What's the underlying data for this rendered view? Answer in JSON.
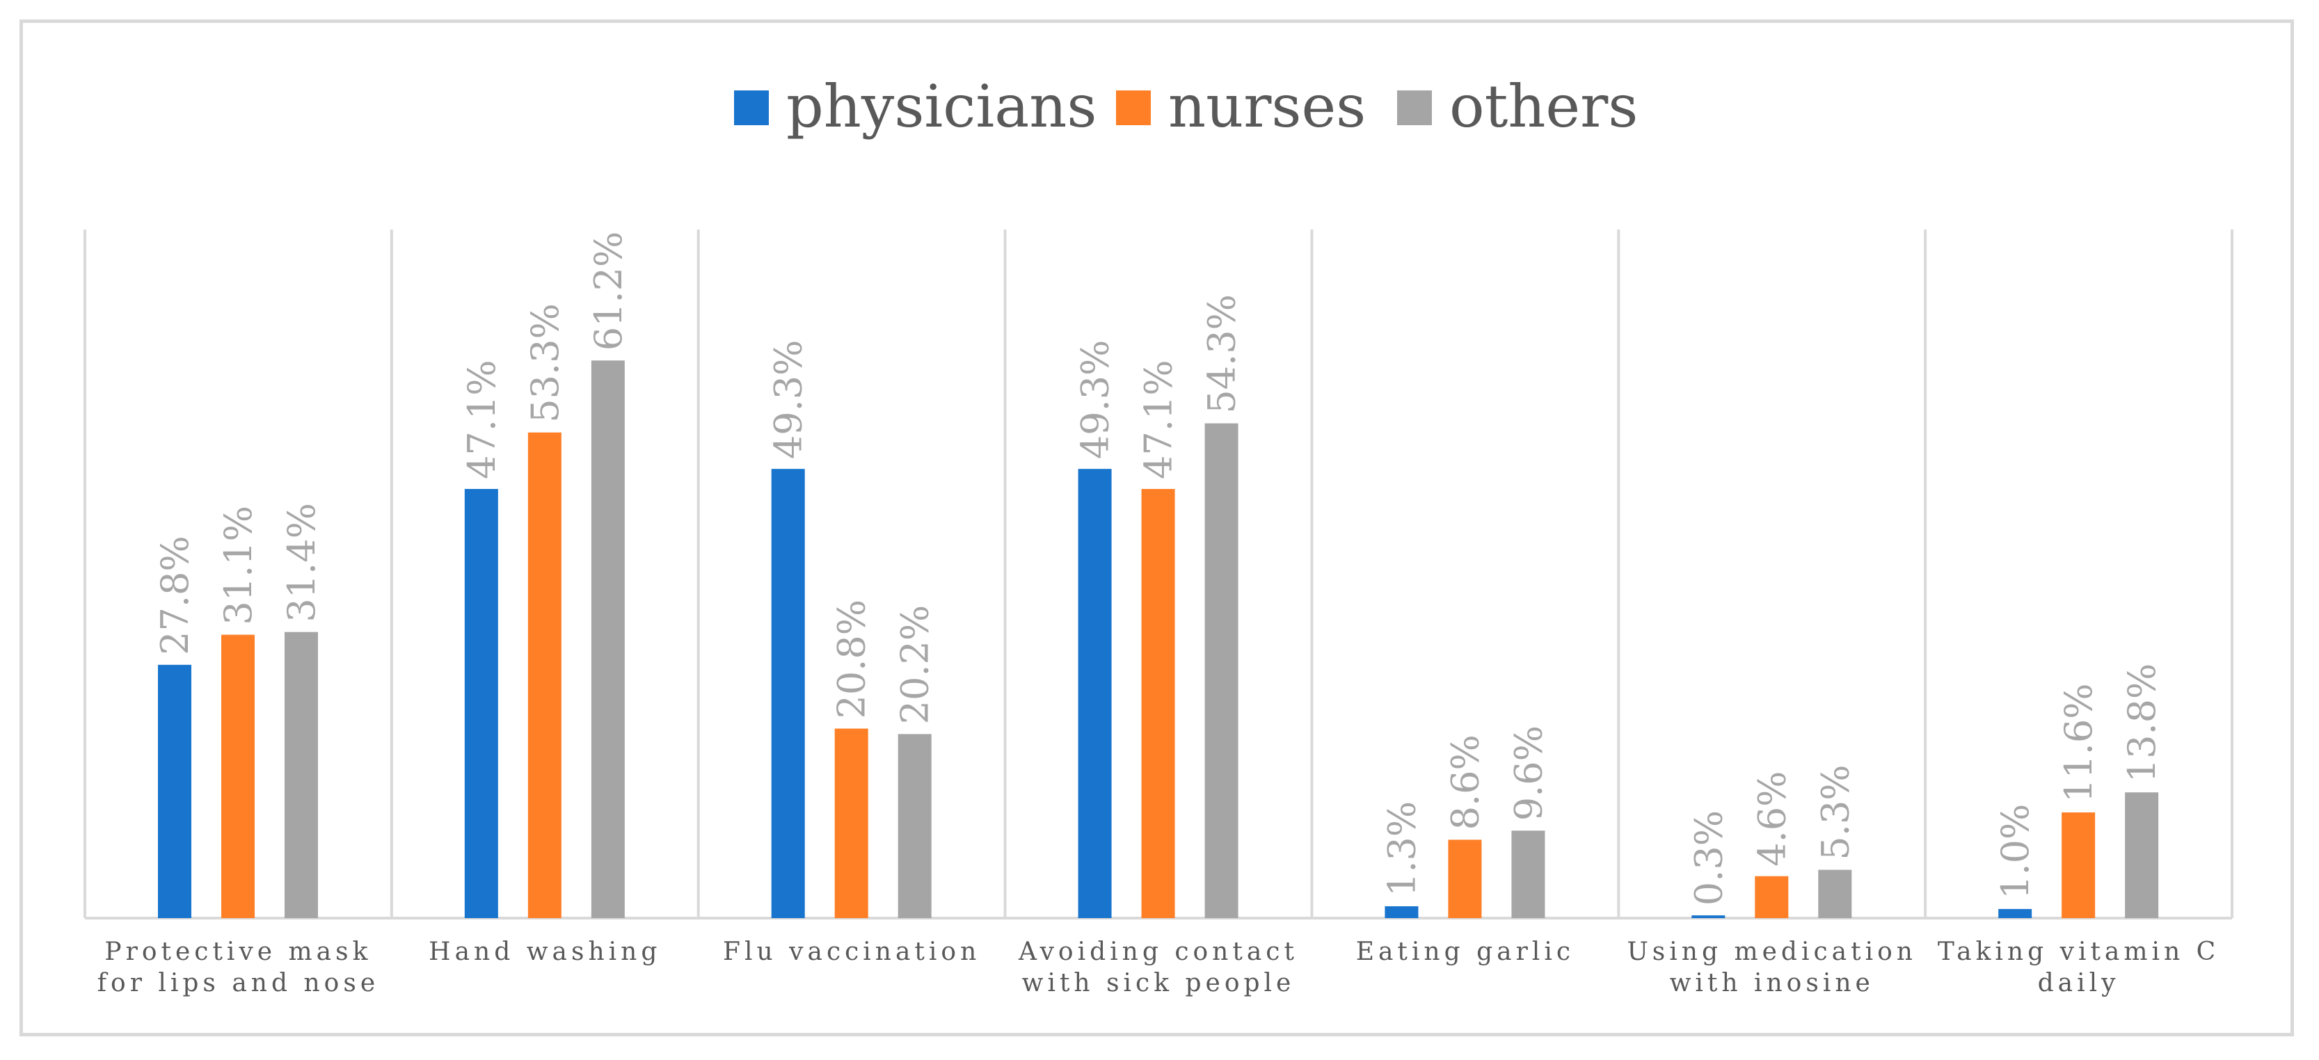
{
  "chart_data": {
    "type": "bar",
    "title": "",
    "xlabel": "",
    "ylabel": "",
    "ylim": [
      0,
      70
    ],
    "grid": false,
    "legend_position": "top-center",
    "categories": [
      [
        "Protective mask",
        "for lips and nose"
      ],
      [
        "Hand washing"
      ],
      [
        "Flu vaccination"
      ],
      [
        "Avoiding contact",
        "with sick people"
      ],
      [
        "Eating garlic"
      ],
      [
        "Using medication",
        "with inosine"
      ],
      [
        "Taking vitamin C",
        "daily"
      ]
    ],
    "series": [
      {
        "name": "physicians",
        "color": "#1874CD",
        "values": [
          27.8,
          47.1,
          49.3,
          49.3,
          1.3,
          0.3,
          1.0
        ],
        "labels": [
          "27.8%",
          "47.1%",
          "49.3%",
          "49.3%",
          "1.3%",
          "0.3%",
          "1.0%"
        ]
      },
      {
        "name": "nurses",
        "color": "#FF7F27",
        "values": [
          31.1,
          53.3,
          20.8,
          47.1,
          8.6,
          4.6,
          11.6
        ],
        "labels": [
          "31.1%",
          "53.3%",
          "20.8%",
          "47.1%",
          "8.6%",
          "4.6%",
          "11.6%"
        ]
      },
      {
        "name": "others",
        "color": "#A5A5A5",
        "values": [
          31.4,
          61.2,
          20.2,
          54.3,
          9.6,
          5.3,
          13.8
        ],
        "labels": [
          "31.4%",
          "61.2%",
          "20.2%",
          "54.3%",
          "9.6%",
          "5.3%",
          "13.8%"
        ]
      }
    ]
  }
}
